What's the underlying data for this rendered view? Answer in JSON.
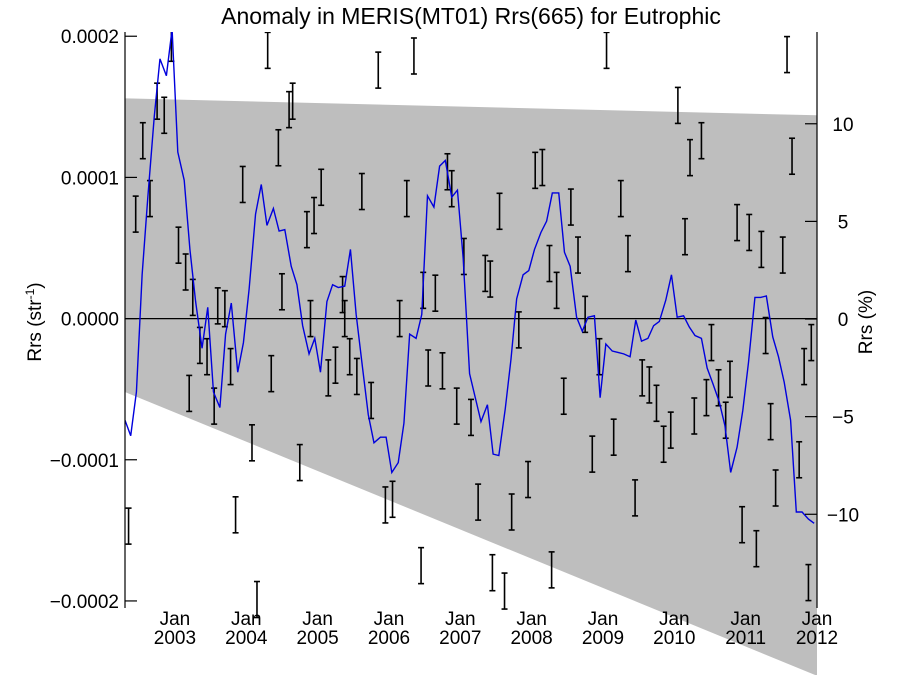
{
  "chart_data": {
    "type": "line",
    "title": "Anomaly in MERIS(MT01) Rrs(665) for Eutrophic",
    "ylabel_left": "Rrs (str",
    "ylabel_left_sup": "-1",
    "ylabel_left_tail": ")",
    "ylabel_right": "Rrs (%)",
    "xlim": [
      2002.3,
      2012.0
    ],
    "ylim": [
      -0.000205,
      0.000203
    ],
    "ylim_right": [
      -14.8,
      14.7
    ],
    "yticks_left": [
      -0.0002,
      -0.0001,
      0.0,
      0.0001,
      0.0002
    ],
    "yticks_left_labels": [
      "−0.0002",
      "−0.0001",
      "0.0000",
      "0.0001",
      "0.0002"
    ],
    "yticks_right": [
      -10,
      -5,
      0,
      5,
      10
    ],
    "yticks_right_labels": [
      "−10",
      "−5",
      "0",
      "5",
      "10"
    ],
    "xticks": [
      2003,
      2004,
      2005,
      2006,
      2007,
      2008,
      2009,
      2010,
      2011,
      2012
    ],
    "xticks_month_label": "Jan",
    "xticks_year_labels": [
      "2003",
      "2004",
      "2005",
      "2006",
      "2007",
      "2008",
      "2009",
      "2010",
      "2011",
      "2012"
    ],
    "zero_line": 0.0,
    "shaded_band": {
      "upper": [
        [
          2002.3,
          0.000156
        ],
        [
          2012.0,
          0.000144
        ]
      ],
      "lower": [
        [
          2002.3,
          -5.2e-05
        ],
        [
          2012.0,
          -0.000253
        ]
      ],
      "color": "#bebebe"
    },
    "series": [
      {
        "kind": "line",
        "color": "#0000dd",
        "x": [
          2002.3,
          2002.38,
          2002.46,
          2002.54,
          2002.62,
          2002.71,
          2002.79,
          2002.88,
          2002.96,
          2003.04,
          2003.13,
          2003.21,
          2003.29,
          2003.38,
          2003.46,
          2003.54,
          2003.63,
          2003.71,
          2003.79,
          2003.88,
          2003.96,
          2004.04,
          2004.13,
          2004.21,
          2004.29,
          2004.38,
          2004.46,
          2004.54,
          2004.63,
          2004.71,
          2004.79,
          2004.88,
          2004.96,
          2005.04,
          2005.13,
          2005.21,
          2005.29,
          2005.38,
          2005.46,
          2005.54,
          2005.63,
          2005.71,
          2005.79,
          2005.88,
          2005.96,
          2006.04,
          2006.13,
          2006.21,
          2006.29,
          2006.38,
          2006.46,
          2006.54,
          2006.63,
          2006.71,
          2006.79,
          2006.88,
          2006.96,
          2007.04,
          2007.13,
          2007.21,
          2007.29,
          2007.38,
          2007.46,
          2007.54,
          2007.63,
          2007.71,
          2007.79,
          2007.88,
          2007.96,
          2008.04,
          2008.13,
          2008.21,
          2008.29,
          2008.38,
          2008.46,
          2008.54,
          2008.63,
          2008.71,
          2008.79,
          2008.88,
          2008.96,
          2009.04,
          2009.13,
          2009.21,
          2009.29,
          2009.38,
          2009.46,
          2009.54,
          2009.63,
          2009.71,
          2009.79,
          2009.88,
          2009.96,
          2010.04,
          2010.13,
          2010.21,
          2010.29,
          2010.38,
          2010.46,
          2010.54,
          2010.63,
          2010.71,
          2010.79,
          2010.88,
          2010.96,
          2011.04,
          2011.13,
          2011.21,
          2011.29,
          2011.38,
          2011.46,
          2011.54,
          2011.63,
          2011.71,
          2011.79,
          2011.88,
          2011.96
        ],
        "y": [
          -7.2e-05,
          -8.3e-05,
          -5.2e-05,
          3.1e-05,
          8.6e-05,
          0.000143,
          0.000184,
          0.000172,
          0.000205,
          0.000118,
          9.8e-05,
          4.9e-05,
          1.2e-05,
          -2.1e-05,
          8e-06,
          -5.2e-05,
          -6.3e-05,
          -1.1e-05,
          1.1e-05,
          -3.8e-05,
          -1.7e-05,
          2.1e-05,
          7.4e-05,
          9.5e-05,
          6.6e-05,
          7.8e-05,
          6.2e-05,
          6.3e-05,
          3.7e-05,
          2.4e-05,
          -5e-06,
          -2.5e-05,
          -1.4e-05,
          -3.8e-05,
          1.2e-05,
          2.4e-05,
          2.2e-05,
          2.3e-05,
          4.9e-05,
          3e-06,
          -3.5e-05,
          -6.8e-05,
          -8.8e-05,
          -8.4e-05,
          -8.4e-05,
          -0.000109,
          -0.000102,
          -7.4e-05,
          -1.1e-05,
          -1.4e-05,
          3e-06,
          8.7e-05,
          7.9e-05,
          0.000108,
          0.000112,
          8.6e-05,
          9.1e-05,
          4.3e-05,
          -3.9e-05,
          -5.6e-05,
          -7.3e-05,
          -6.1e-05,
          -9.6e-05,
          -9.7e-05,
          -6.4e-05,
          -2.9e-05,
          1.4e-05,
          3.1e-05,
          3.4e-05,
          4.9e-05,
          6.1e-05,
          6.9e-05,
          8.9e-05,
          8.9e-05,
          4.7e-05,
          3.7e-05,
          1e-06,
          -9e-06,
          1e-06,
          2e-06,
          -5.6e-05,
          -1.8e-05,
          -2.3e-05,
          -2.4e-05,
          -2.5e-05,
          -2.7e-05,
          -1e-06,
          -1.6e-05,
          -1.4e-05,
          -5e-06,
          -2e-06,
          1.3e-05,
          3.1e-05,
          1e-06,
          2e-06,
          -6e-06,
          -1.2e-05,
          -1.4e-05,
          -3.5e-05,
          -4.6e-05,
          -5.9e-05,
          -7.6e-05,
          -0.000109,
          -9.1e-05,
          -6.5e-05,
          -3.1e-05,
          1.5e-05,
          1.5e-05,
          1.6e-05,
          -1.3e-05,
          -2.7e-05,
          -4.5e-05,
          -7.2e-05,
          -0.000137,
          -0.000137,
          -0.000142,
          -0.000145
        ]
      },
      {
        "kind": "errorbar",
        "color": "#000000",
        "x": [
          2002.35,
          2002.45,
          2002.55,
          2002.65,
          2002.75,
          2002.85,
          2002.95,
          2003.05,
          2003.15,
          2003.2,
          2003.25,
          2003.35,
          2003.45,
          2003.55,
          2003.6,
          2003.7,
          2003.78,
          2003.85,
          2003.95,
          2004.08,
          2004.15,
          2004.3,
          2004.35,
          2004.45,
          2004.5,
          2004.6,
          2004.65,
          2004.75,
          2004.85,
          2004.9,
          2004.95,
          2005.05,
          2005.15,
          2005.25,
          2005.35,
          2005.38,
          2005.45,
          2005.55,
          2005.62,
          2005.75,
          2005.85,
          2005.95,
          2006.05,
          2006.15,
          2006.25,
          2006.35,
          2006.45,
          2006.48,
          2006.55,
          2006.65,
          2006.75,
          2006.82,
          2006.88,
          2006.95,
          2007.05,
          2007.15,
          2007.25,
          2007.35,
          2007.42,
          2007.45,
          2007.55,
          2007.62,
          2007.72,
          2007.82,
          2007.95,
          2008.05,
          2008.15,
          2008.25,
          2008.28,
          2008.35,
          2008.45,
          2008.55,
          2008.65,
          2008.75,
          2008.85,
          2008.95,
          2009.05,
          2009.15,
          2009.25,
          2009.35,
          2009.45,
          2009.55,
          2009.65,
          2009.75,
          2009.85,
          2009.95,
          2010.05,
          2010.15,
          2010.22,
          2010.28,
          2010.38,
          2010.45,
          2010.52,
          2010.62,
          2010.72,
          2010.78,
          2010.88,
          2010.95,
          2011.05,
          2011.15,
          2011.22,
          2011.28,
          2011.35,
          2011.42,
          2011.52,
          2011.58,
          2011.65,
          2011.75,
          2011.82,
          2011.88,
          2011.92
        ],
        "y": [
          -0.000147,
          7.4e-05,
          0.000126,
          8.5e-05,
          0.000154,
          0.000144,
          0.000195,
          5.2e-05,
          3.3e-05,
          -5.3e-05,
          1.5e-05,
          -1.9e-05,
          -2.7e-05,
          -6.2e-05,
          9e-06,
          7e-06,
          -3.4e-05,
          -0.000139,
          9.5e-05,
          -8.8e-05,
          -0.000199,
          0.00019,
          -3.9e-05,
          0.000121,
          1.9e-05,
          0.000148,
          0.000154,
          -0.000102,
          6.3e-05,
          0.0,
          7.3e-05,
          9.3e-05,
          -4.2e-05,
          -3.3e-05,
          1.7e-05,
          0.0,
          -2.7e-05,
          -4.1e-05,
          9e-05,
          -5.8e-05,
          0.000176,
          -0.000132,
          -0.000128,
          0.0,
          8.5e-05,
          0.000186,
          -0.000175,
          2e-05,
          -3.5e-05,
          1.8e-05,
          -3.7e-05,
          0.000104,
          9.2e-05,
          -6.2e-05,
          4.4e-05,
          -7e-05,
          -0.00013,
          3.2e-05,
          2.8e-05,
          -0.00018,
          7.6e-05,
          -0.000193,
          -0.000137,
          -8e-06,
          -0.000114,
          0.000105,
          0.000107,
          3.9e-05,
          -0.000178,
          2e-05,
          -5.5e-05,
          7.9e-05,
          4.5e-05,
          3e-06,
          -9.6e-05,
          -2.7e-05,
          0.00019,
          -8.4e-05,
          8.5e-05,
          4.6e-05,
          -0.000127,
          -4.2e-05,
          -4.7e-05,
          -6e-05,
          -8.9e-05,
          -7.9e-05,
          0.000151,
          5.8e-05,
          0.000114,
          -6.9e-05,
          0.000126,
          -5.6e-05,
          -1.7e-05,
          -4.9e-05,
          -7.2e-05,
          -4.3e-05,
          6.8e-05,
          -0.000146,
          6.1e-05,
          -0.000163,
          4.9e-05,
          -1.2e-05,
          -7.3e-05,
          -0.00012,
          4.5e-05,
          0.000187,
          0.000115,
          -0.0001,
          -3.4e-05,
          -0.000187,
          -1.7e-05
        ]
      }
    ]
  }
}
